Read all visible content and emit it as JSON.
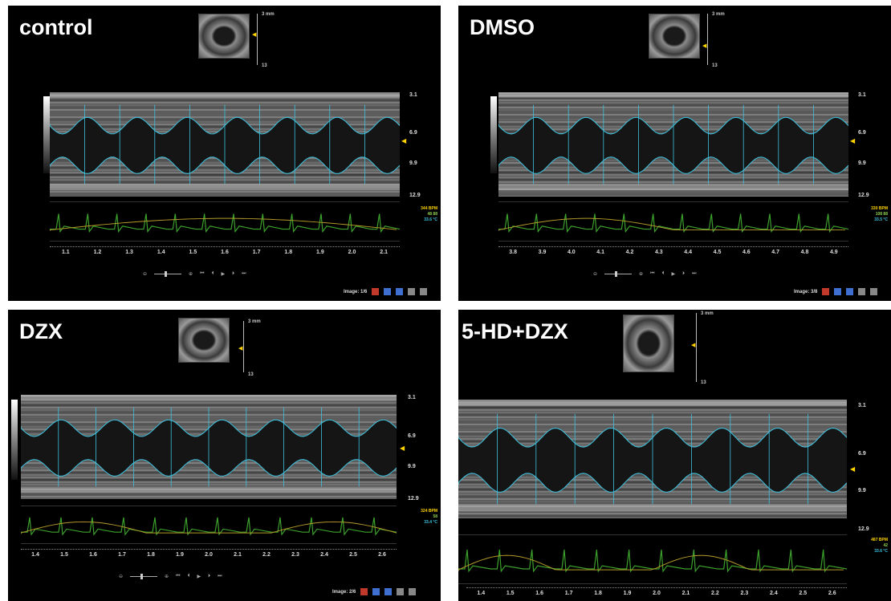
{
  "panels": [
    {
      "title": "control",
      "thumb_scale": {
        "top": "3 mm",
        "bottom": "13"
      },
      "depth_labels": [
        "3.1",
        "6.9",
        "9.9",
        "12.9"
      ],
      "time_ticks": [
        "1.1",
        "1.2",
        "1.3",
        "1.4",
        "1.5",
        "1.6",
        "1.7",
        "1.8",
        "1.9",
        "2.0",
        "2.1"
      ],
      "vitals": {
        "hr": "344 BPM",
        "rr": "48 88",
        "temp": "33.6 °C"
      },
      "image_label": "Image: 1/6"
    },
    {
      "title": "DMSO",
      "thumb_scale": {
        "top": "3 mm",
        "bottom": "13"
      },
      "depth_labels": [
        "3.1",
        "6.9",
        "9.9",
        "12.9"
      ],
      "time_ticks": [
        "3.8",
        "3.9",
        "4.0",
        "4.1",
        "4.2",
        "4.3",
        "4.4",
        "4.5",
        "4.6",
        "4.7",
        "4.8",
        "4.9"
      ],
      "vitals": {
        "hr": "330 BPM",
        "rr": "108 88",
        "temp": "33.5 °C"
      },
      "image_label": "Image: 3/8"
    },
    {
      "title": "DZX",
      "thumb_scale": {
        "top": "3 mm",
        "bottom": "13"
      },
      "depth_labels": [
        "3.1",
        "6.9",
        "9.9",
        "12.9"
      ],
      "time_ticks": [
        "1.4",
        "1.5",
        "1.6",
        "1.7",
        "1.8",
        "1.9",
        "2.0",
        "2.1",
        "2.2",
        "2.3",
        "2.4",
        "2.5",
        "2.6"
      ],
      "vitals": {
        "hr": "324 BPM",
        "rr": "58",
        "temp": "33.4 °C"
      },
      "image_label": "Image: 2/6"
    },
    {
      "title": "5-HD+DZX",
      "thumb_scale": {
        "top": "3 mm",
        "bottom": "13"
      },
      "depth_labels": [
        "3.1",
        "6.9",
        "9.9",
        "12.9"
      ],
      "time_ticks": [
        "1.4",
        "1.5",
        "1.6",
        "1.7",
        "1.8",
        "1.9",
        "2.0",
        "2.1",
        "2.2",
        "2.3",
        "2.4",
        "2.5",
        "2.6"
      ],
      "vitals": {
        "hr": "487 BPM",
        "rr": "42",
        "temp": "33.6 °C"
      },
      "image_label": ""
    }
  ],
  "playback_icons": [
    "zoom-out-icon",
    "slider",
    "zoom-in-icon",
    "skip-back-icon",
    "step-back-icon",
    "play-icon",
    "step-forward-icon",
    "skip-forward-icon"
  ],
  "footer_icons": [
    "export-icon",
    "copy-icon",
    "save-icon",
    "compare-icon",
    "layout-icon"
  ],
  "colors": {
    "panel_bg": "#000000",
    "measure_cyan": "#3cc3e0",
    "ecg_green": "#3ca02c",
    "resp_yellow": "#b59a2a",
    "depth_marker": "#ffd400"
  }
}
